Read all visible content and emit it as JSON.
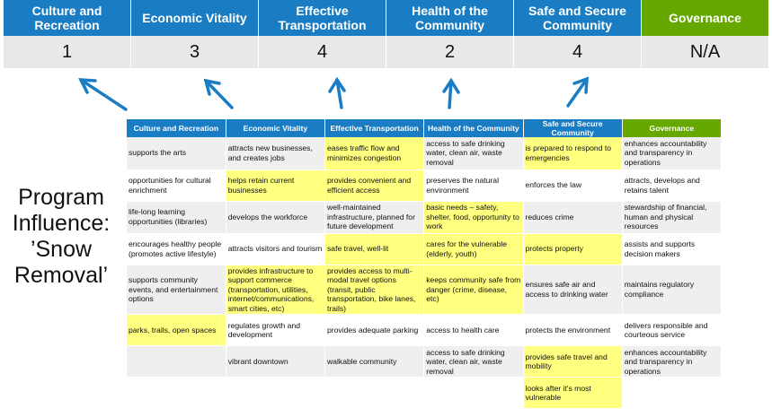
{
  "top_categories": [
    {
      "label": "Culture and Recreation",
      "score": "1"
    },
    {
      "label": "Economic Vitality",
      "score": "3"
    },
    {
      "label": "Effective Transportation",
      "score": "4"
    },
    {
      "label": "Health of the Community",
      "score": "2"
    },
    {
      "label": "Safe and Secure Community",
      "score": "4"
    },
    {
      "label": "Governance",
      "score": "N/A"
    }
  ],
  "side_title": [
    "Program",
    "Influence:",
    "’Snow",
    "Removal’"
  ],
  "colors": {
    "blue": "#1a7dc4",
    "green": "#66a800",
    "highlight": "#ffff80",
    "score_bg": "#e8e8e8"
  },
  "table": {
    "headers": [
      "Culture and Recreation",
      "Economic Vitality",
      "Effective Transportation",
      "Health of the Community",
      "Safe and Secure Community",
      "Governance"
    ],
    "rows": [
      {
        "cells": [
          "supports the arts",
          "attracts new businesses, and creates jobs",
          "eases traffic flow and minimizes congestion",
          "access to safe drinking water, clean air, waste removal",
          "is prepared to respond to emergencies",
          "enhances accountability and transparency in operations"
        ],
        "highlighted": [
          2,
          4
        ]
      },
      {
        "cells": [
          "opportunities for cultural enrichment",
          "helps retain current businesses",
          "provides convenient and efficient access",
          "preserves the natural environment",
          "enforces the law",
          "attracts, develops and retains talent"
        ],
        "highlighted": [
          1,
          2
        ]
      },
      {
        "cells": [
          "life-long learning opportunities (libraries)",
          "develops the workforce",
          "well-maintained infrastructure, planned for future development",
          "basic needs – safety, shelter, food, opportunity to work",
          "reduces crime",
          "stewardship of financial, human and physical resources"
        ],
        "highlighted": [
          3
        ]
      },
      {
        "cells": [
          "encourages healthy people (promotes active lifestyle)",
          "attracts visitors and tourism",
          "safe travel, well-lit",
          "cares for the vulnerable (elderly, youth)",
          "protects property",
          "assists and supports decision makers"
        ],
        "highlighted": [
          2,
          3,
          4
        ]
      },
      {
        "cells": [
          "supports community events, and entertainment options",
          "provides infrastructure to support commerce (transportation, utilities, internet/communications, smart cities, etc)",
          "provides access to multi-modal travel options (transit, public transportation, bike lanes, trails)",
          "keeps community safe from danger (crime, disease, etc)",
          "ensures safe air and access to drinking water",
          "maintains regulatory compliance"
        ],
        "highlighted": [
          1,
          2,
          3
        ]
      },
      {
        "cells": [
          "parks, trails, open spaces",
          "regulates growth and development",
          "provides adequate parking",
          "access to health care",
          "protects the environment",
          "delivers responsible and courteous service"
        ],
        "highlighted": [
          0
        ]
      },
      {
        "cells": [
          "",
          "vibrant downtown",
          "walkable community",
          "access to safe drinking water, clean air, waste removal",
          "provides safe travel and mobility",
          "enhances accountability and transparency in operations"
        ],
        "highlighted": [
          4
        ]
      },
      {
        "cells": [
          "",
          "",
          "",
          "",
          "looks after it's most vulnerable",
          ""
        ],
        "highlighted": [
          4
        ]
      }
    ]
  }
}
